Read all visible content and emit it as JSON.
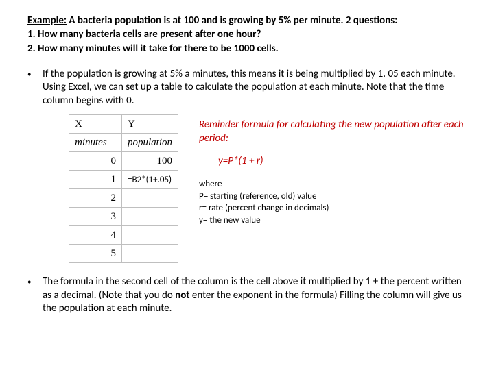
{
  "header": {
    "title": "Example:",
    "intro": " A bacteria population is at 100 and is growing by 5% per minute.  2 questions:",
    "q1": "1.  How many bacteria cells are present after one hour?",
    "q2": "2.  How many minutes will it take for there to be 1000 cells."
  },
  "bullet1": "If the population is growing at 5% a minutes, this means it is being multiplied by 1. 05 each minute.  Using Excel, we can set up a table to calculate the population at each minute.  Note that the time column begins with 0.",
  "table": {
    "h1a": "X",
    "h1b": "Y",
    "h2a": "minutes",
    "h2b": "population",
    "rows": [
      {
        "x": "0",
        "y": "100"
      },
      {
        "x": "1",
        "y": "=B2*(1+.05)"
      },
      {
        "x": "2",
        "y": ""
      },
      {
        "x": "3",
        "y": ""
      },
      {
        "x": "4",
        "y": ""
      },
      {
        "x": "5",
        "y": ""
      }
    ]
  },
  "reminder": "Reminder formula for calculating the new population after each period:",
  "formula": "y=P*(1 + r)",
  "where": {
    "w": "where",
    "p": "P= starting (reference, old) value",
    "r": "r= rate (percent change in decimals)",
    "y": "y= the new value"
  },
  "bullet2_a": "The formula in the second cell of the column is the cell above it multiplied by 1 + the percent written as a decimal.  (Note that you do ",
  "bullet2_not": "not",
  "bullet2_b": " enter the exponent in the formula)  Filling the column will give us the population at each minute."
}
